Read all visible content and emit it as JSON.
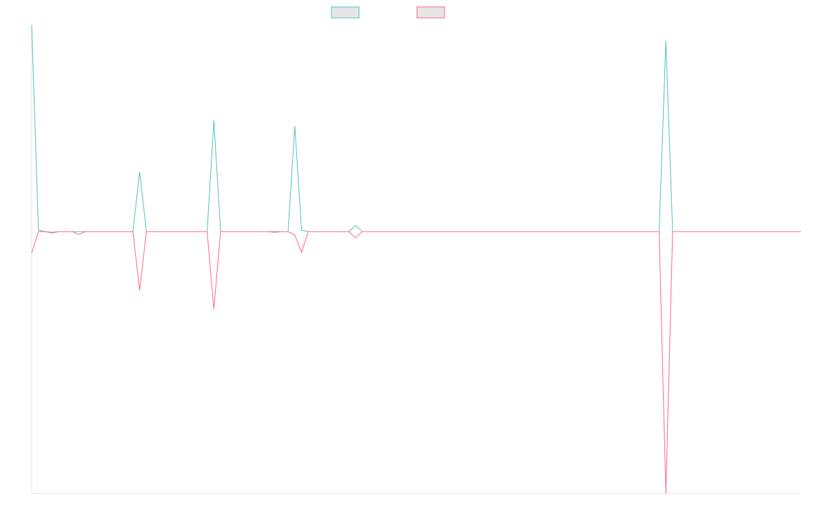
{
  "chart_data": {
    "type": "line",
    "title": "",
    "xlabel": "",
    "ylabel": "",
    "grid": false,
    "legend": {
      "placement": "top-center",
      "entries": [
        {
          "label": "",
          "color": "#4bc0c0"
        },
        {
          "label": "",
          "color": "#ff6384"
        }
      ]
    },
    "ylim": [
      -380,
      300
    ],
    "x": [
      0,
      1,
      2,
      3,
      4,
      5,
      6,
      7,
      8,
      9,
      10,
      11,
      12,
      13,
      14,
      15,
      16,
      17,
      18,
      19,
      20,
      21,
      22,
      23,
      24,
      25,
      26,
      27,
      28,
      29,
      30,
      31,
      32,
      33,
      34,
      35,
      36,
      37,
      38,
      39,
      40,
      41,
      42,
      43,
      44,
      45,
      46,
      47,
      48,
      49,
      50,
      51,
      52,
      53,
      54,
      55,
      56,
      57,
      58,
      59,
      60,
      61,
      62,
      63,
      64,
      65,
      66,
      67,
      68,
      69,
      70,
      71,
      72,
      73,
      74,
      75,
      76,
      77,
      78,
      79,
      80,
      81,
      82,
      83,
      84,
      85,
      86,
      87,
      88,
      89,
      90,
      91,
      92,
      93,
      94,
      95,
      96,
      97,
      98,
      99,
      100,
      101,
      102,
      103,
      104,
      105,
      106,
      107,
      108,
      109,
      110,
      111,
      112,
      113,
      114
    ],
    "series": [
      {
        "color": "#4bc0c0",
        "values": [
          300,
          2,
          0,
          -1,
          0,
          0,
          0,
          0,
          0,
          0,
          0,
          0,
          0,
          0,
          0,
          0,
          87,
          0,
          0,
          0,
          0,
          0,
          0,
          0,
          0,
          0,
          0,
          161,
          0,
          0,
          0,
          0,
          0,
          0,
          0,
          0,
          0,
          0,
          0,
          153,
          2,
          0,
          0,
          0,
          0,
          0,
          0,
          0,
          9,
          0,
          0,
          0,
          0,
          0,
          0,
          0,
          0,
          0,
          0,
          0,
          0,
          0,
          0,
          0,
          0,
          0,
          0,
          0,
          0,
          0,
          0,
          0,
          0,
          0,
          0,
          0,
          0,
          0,
          0,
          0,
          0,
          0,
          0,
          0,
          0,
          0,
          0,
          0,
          0,
          0,
          0,
          0,
          0,
          0,
          277,
          0,
          0,
          0,
          0,
          0,
          0,
          0,
          0,
          0,
          0,
          0,
          0,
          0,
          0,
          0,
          0,
          0,
          0,
          0,
          0
        ]
      },
      {
        "color": "#ff6384",
        "values": [
          -31,
          0,
          0,
          -2,
          0,
          0,
          0,
          -4,
          0,
          0,
          0,
          0,
          0,
          0,
          0,
          0,
          -85,
          0,
          0,
          0,
          0,
          0,
          0,
          0,
          0,
          0,
          0,
          -112,
          0,
          0,
          0,
          0,
          0,
          0,
          0,
          0,
          -1,
          0,
          0,
          -5,
          -30,
          0,
          0,
          0,
          0,
          0,
          0,
          0,
          -9,
          0,
          0,
          0,
          0,
          0,
          0,
          0,
          0,
          0,
          0,
          0,
          0,
          0,
          0,
          0,
          0,
          0,
          0,
          0,
          0,
          0,
          0,
          0,
          0,
          0,
          0,
          0,
          0,
          0,
          0,
          0,
          0,
          0,
          0,
          0,
          0,
          0,
          0,
          0,
          0,
          0,
          0,
          0,
          0,
          0,
          -380,
          0,
          0,
          0,
          0,
          0,
          0,
          0,
          0,
          0,
          0,
          0,
          0,
          0,
          0,
          0,
          0,
          0,
          0,
          0,
          0
        ]
      }
    ]
  }
}
